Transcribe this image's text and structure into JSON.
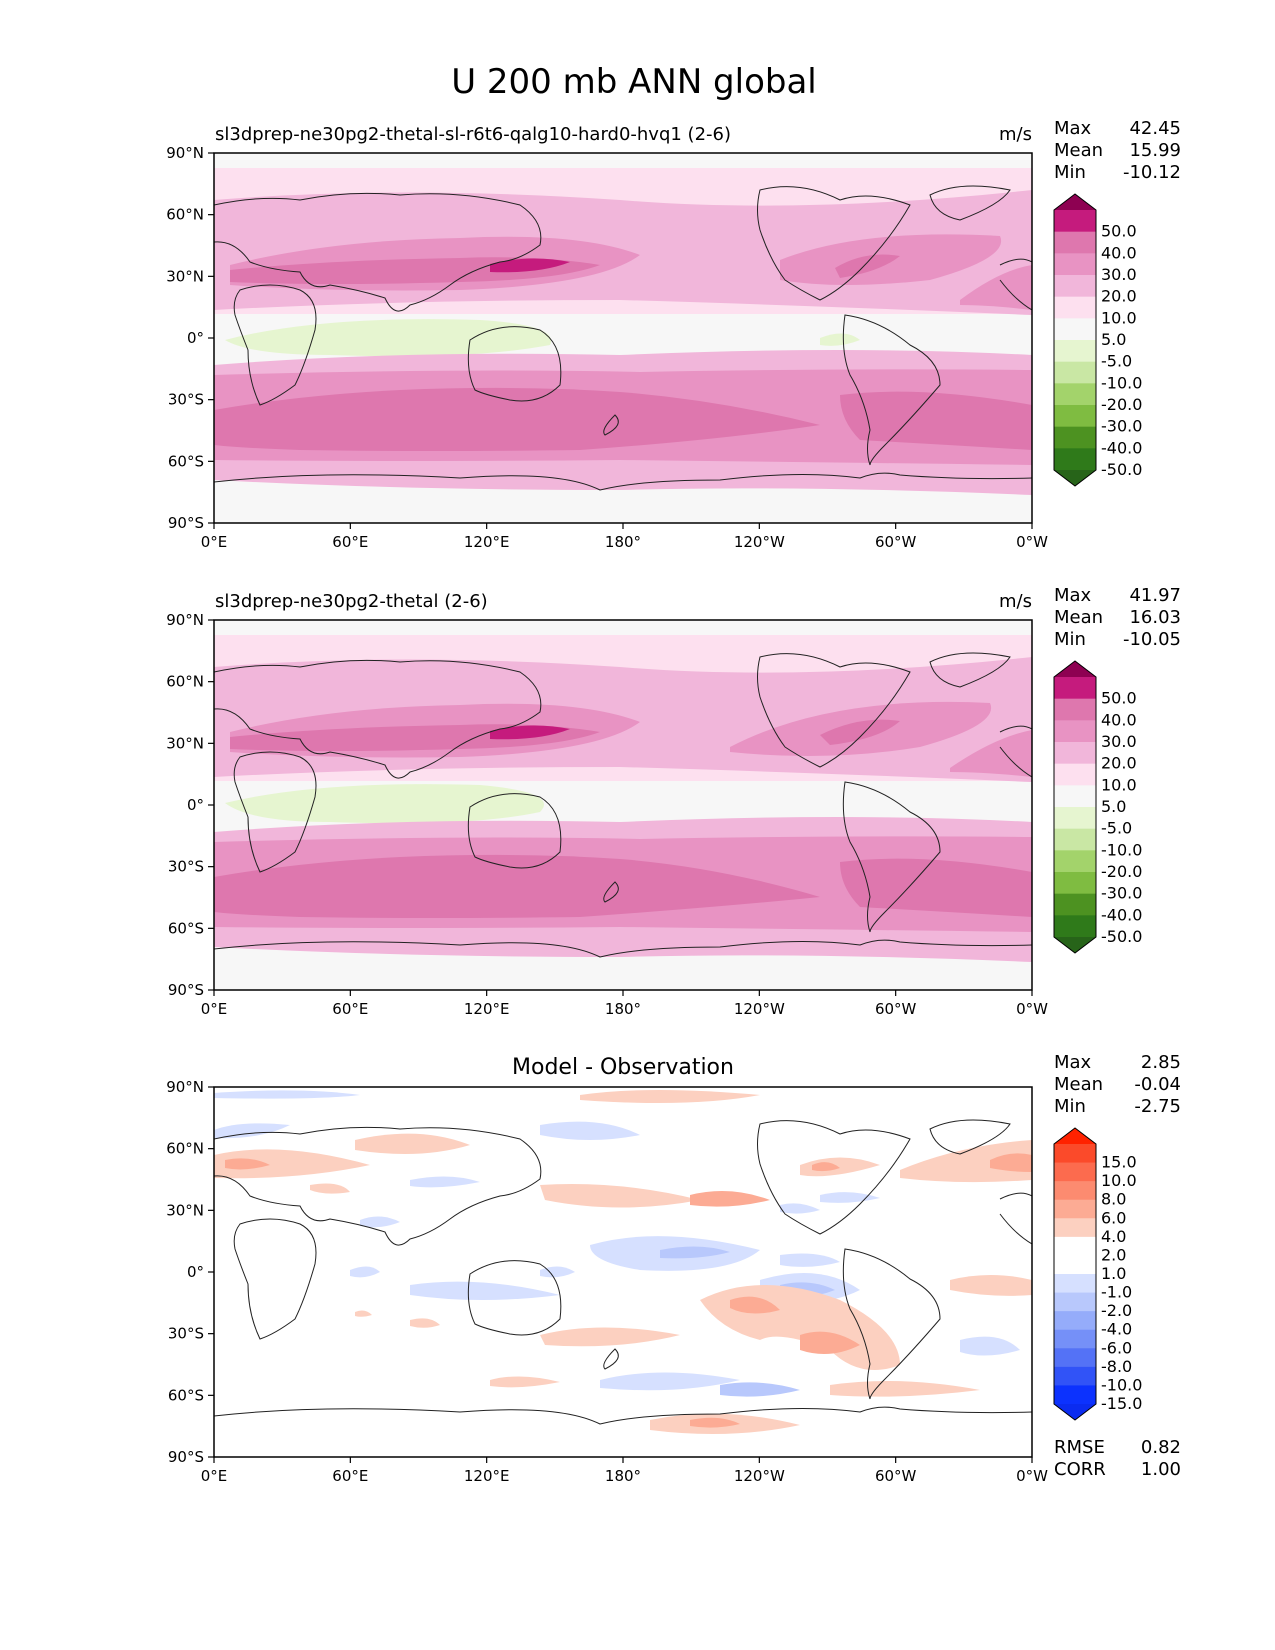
{
  "figure": {
    "title": "U 200 mb ANN global"
  },
  "panels": [
    {
      "title": "sl3dprep-ne30pg2-thetal-sl-r6t6-qalg10-hard0-hvq1 (2-6)",
      "units": "m/s",
      "stats": [
        {
          "label": "Max",
          "value": "42.45"
        },
        {
          "label": "Mean",
          "value": "15.99"
        },
        {
          "label": "Min",
          "value": "-10.12"
        }
      ],
      "colorbar": {
        "ticks": [
          "50.0",
          "40.0",
          "30.0",
          "20.0",
          "10.0",
          "5.0",
          "-5.0",
          "-10.0",
          "-20.0",
          "-30.0",
          "-40.0",
          "-50.0"
        ],
        "colors": [
          "#8e0152",
          "#c51b7d",
          "#de77ae",
          "#e893c3",
          "#f1b6da",
          "#fde0ef",
          "#f7f7f7",
          "#e6f5d0",
          "#c9e7a4",
          "#a3d36b",
          "#7fbc41",
          "#4d9221",
          "#2f7a1a",
          "#276419"
        ]
      }
    },
    {
      "title": "sl3dprep-ne30pg2-thetal (2-6)",
      "units": "m/s",
      "stats": [
        {
          "label": "Max",
          "value": "41.97"
        },
        {
          "label": "Mean",
          "value": "16.03"
        },
        {
          "label": "Min",
          "value": "-10.05"
        }
      ],
      "colorbar": {
        "ticks": [
          "50.0",
          "40.0",
          "30.0",
          "20.0",
          "10.0",
          "5.0",
          "-5.0",
          "-10.0",
          "-20.0",
          "-30.0",
          "-40.0",
          "-50.0"
        ],
        "colors": [
          "#8e0152",
          "#c51b7d",
          "#de77ae",
          "#e893c3",
          "#f1b6da",
          "#fde0ef",
          "#f7f7f7",
          "#e6f5d0",
          "#c9e7a4",
          "#a3d36b",
          "#7fbc41",
          "#4d9221",
          "#2f7a1a",
          "#276419"
        ]
      }
    },
    {
      "title": "Model - Observation",
      "units": "",
      "stats": [
        {
          "label": "Max",
          "value": "2.85"
        },
        {
          "label": "Mean",
          "value": "-0.04"
        },
        {
          "label": "Min",
          "value": "-2.75"
        }
      ],
      "metrics": [
        {
          "label": "RMSE",
          "value": "0.82"
        },
        {
          "label": "CORR",
          "value": "1.00"
        }
      ],
      "colorbar": {
        "ticks": [
          "15.0",
          "10.0",
          "8.0",
          "6.0",
          "4.0",
          "2.0",
          "1.0",
          "-1.0",
          "-2.0",
          "-4.0",
          "-6.0",
          "-8.0",
          "-10.0",
          "-15.0"
        ],
        "colors": [
          "#ff2200",
          "#fb4a2a",
          "#fc6b4e",
          "#fc8b70",
          "#fcab94",
          "#fcd0c0",
          "#ffffff",
          "#ffffff",
          "#d6e0ff",
          "#b8c8fc",
          "#95acfa",
          "#7590f8",
          "#5472f6",
          "#3153f7",
          "#0c32fe",
          "#0b2cf0"
        ]
      }
    }
  ],
  "axes": {
    "xticks": [
      "0°E",
      "60°E",
      "120°E",
      "180°",
      "120°W",
      "60°W",
      "0°W"
    ],
    "yticks": [
      "90°N",
      "60°N",
      "30°N",
      "0°",
      "30°S",
      "60°S",
      "90°S"
    ]
  },
  "chart_data": [
    {
      "type": "heatmap",
      "title": "sl3dprep-ne30pg2-thetal-sl-r6t6-qalg10-hard0-hvq1 (2-6)",
      "variable": "U 200 mb ANN",
      "units": "m/s",
      "x_range": [
        0,
        360
      ],
      "y_range": [
        -90,
        90
      ],
      "levels": [
        -50,
        -40,
        -30,
        -20,
        -10,
        -5,
        5,
        10,
        20,
        30,
        40,
        50
      ],
      "zonal_mean_u": [
        {
          "lat": -90,
          "u": 2
        },
        {
          "lat": -75,
          "u": 8
        },
        {
          "lat": -60,
          "u": 18
        },
        {
          "lat": -45,
          "u": 30
        },
        {
          "lat": -30,
          "u": 26
        },
        {
          "lat": -15,
          "u": 10
        },
        {
          "lat": 0,
          "u": -3
        },
        {
          "lat": 15,
          "u": 7
        },
        {
          "lat": 30,
          "u": 30
        },
        {
          "lat": 45,
          "u": 20
        },
        {
          "lat": 60,
          "u": 12
        },
        {
          "lat": 75,
          "u": 8
        },
        {
          "lat": 90,
          "u": 2
        }
      ],
      "max": 42.45,
      "mean": 15.99,
      "min": -10.12
    },
    {
      "type": "heatmap",
      "title": "sl3dprep-ne30pg2-thetal (2-6)",
      "variable": "U 200 mb ANN",
      "units": "m/s",
      "x_range": [
        0,
        360
      ],
      "y_range": [
        -90,
        90
      ],
      "levels": [
        -50,
        -40,
        -30,
        -20,
        -10,
        -5,
        5,
        10,
        20,
        30,
        40,
        50
      ],
      "zonal_mean_u": [
        {
          "lat": -90,
          "u": 2
        },
        {
          "lat": -75,
          "u": 8
        },
        {
          "lat": -60,
          "u": 18
        },
        {
          "lat": -45,
          "u": 30
        },
        {
          "lat": -30,
          "u": 26
        },
        {
          "lat": -15,
          "u": 10
        },
        {
          "lat": 0,
          "u": -3
        },
        {
          "lat": 15,
          "u": 7
        },
        {
          "lat": 30,
          "u": 30
        },
        {
          "lat": 45,
          "u": 20
        },
        {
          "lat": 60,
          "u": 12
        },
        {
          "lat": 75,
          "u": 8
        },
        {
          "lat": 90,
          "u": 2
        }
      ],
      "max": 41.97,
      "mean": 16.03,
      "min": -10.05
    },
    {
      "type": "heatmap",
      "title": "Model - Observation",
      "x_range": [
        0,
        360
      ],
      "y_range": [
        -90,
        90
      ],
      "levels": [
        -15,
        -10,
        -8,
        -6,
        -4,
        -2,
        -1,
        1,
        2,
        4,
        6,
        8,
        10,
        15
      ],
      "max": 2.85,
      "mean": -0.04,
      "min": -2.75,
      "rmse": 0.82,
      "corr": 1.0
    }
  ]
}
